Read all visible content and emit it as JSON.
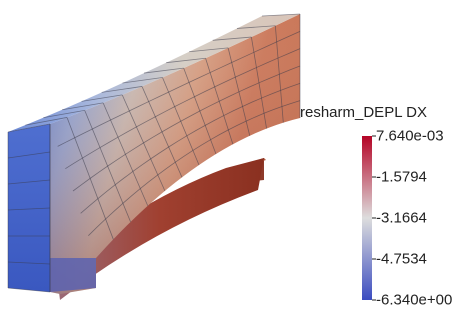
{
  "legend": {
    "title": "resharm_DEPL DX",
    "ticks": [
      "7.640e-03",
      "-1.5794",
      "-3.1664",
      "-4.7534",
      "-6.340e+00"
    ],
    "colors": {
      "low": "#3b4cc0",
      "mid": "#dddddd",
      "high": "#b40426"
    }
  }
}
